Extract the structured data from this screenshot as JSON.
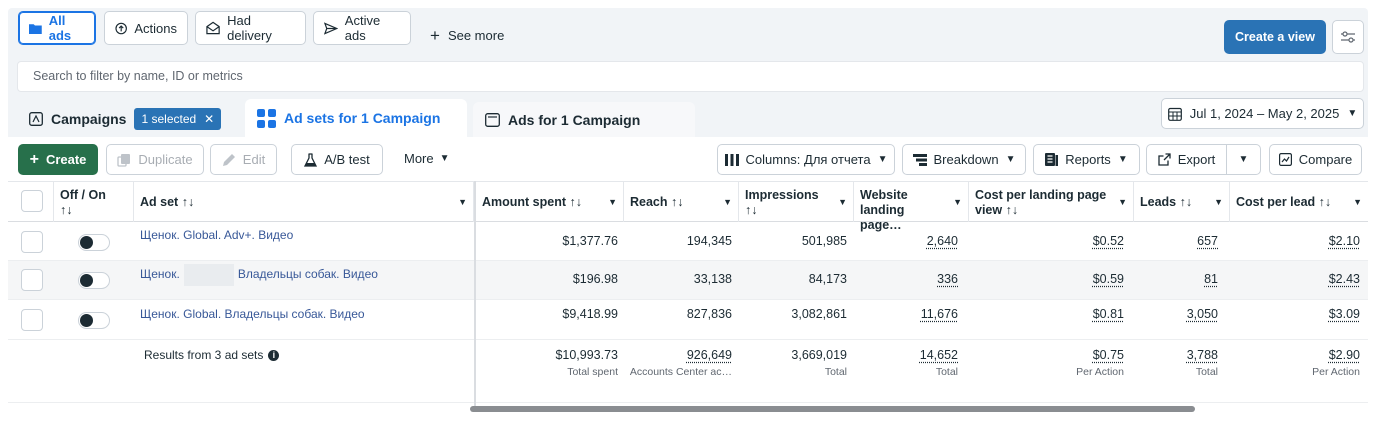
{
  "filters": {
    "all_ads": "All ads",
    "actions": "Actions",
    "had_delivery": "Had delivery",
    "active_ads": "Active ads",
    "see_more": "See more"
  },
  "create_view": "Create a view",
  "search_placeholder": "Search to filter by name, ID or metrics",
  "tabs": {
    "campaigns": "Campaigns",
    "selected": "1 selected",
    "adsets": "Ad sets for 1 Campaign",
    "ads": "Ads for 1 Campaign"
  },
  "date_range": "Jul 1, 2024 – May 2, 2025",
  "toolbar": {
    "create": "Create",
    "duplicate": "Duplicate",
    "edit": "Edit",
    "ab_test": "A/B test",
    "more": "More",
    "columns": "Columns: Для отчета",
    "breakdown": "Breakdown",
    "reports": "Reports",
    "export": "Export",
    "compare": "Compare"
  },
  "columns": {
    "off_on": "Off / On",
    "ad_set": "Ad set",
    "amount_spent": "Amount spent",
    "reach": "Reach",
    "impressions": "Impressions",
    "website_landing": "Website landing page…",
    "cost_per_landing": "Cost per landing page view",
    "leads": "Leads",
    "cost_per_lead": "Cost per lead"
  },
  "rows": [
    {
      "name_a": "Щенок. Global. Adv+. Видео",
      "name_b": "",
      "amount": "$1,377.76",
      "reach": "194,345",
      "impressions": "501,985",
      "landing": "2,640",
      "cost_landing": "$0.52",
      "leads": "657",
      "cost_lead": "$2.10"
    },
    {
      "name_a": "Щенок.",
      "name_b": "Владельцы собак. Видео",
      "amount": "$196.98",
      "reach": "33,138",
      "impressions": "84,173",
      "landing": "336",
      "cost_landing": "$0.59",
      "leads": "81",
      "cost_lead": "$2.43"
    },
    {
      "name_a": "Щенок. Global. Владельцы собак. Видео",
      "name_b": "",
      "amount": "$9,418.99",
      "reach": "827,836",
      "impressions": "3,082,861",
      "landing": "11,676",
      "cost_landing": "$0.81",
      "leads": "3,050",
      "cost_lead": "$3.09"
    }
  ],
  "summary": {
    "label": "Results from 3 ad sets",
    "amount": "$10,993.73",
    "amount_sub": "Total spent",
    "reach": "926,649",
    "reach_sub": "Accounts Center ac…",
    "impressions": "3,669,019",
    "impressions_sub": "Total",
    "landing": "14,652",
    "landing_sub": "Total",
    "cost_landing": "$0.75",
    "cost_landing_sub": "Per Action",
    "leads": "3,788",
    "leads_sub": "Total",
    "cost_lead": "$2.90",
    "cost_lead_sub": "Per Action"
  },
  "sort_glyph": "↑↓"
}
